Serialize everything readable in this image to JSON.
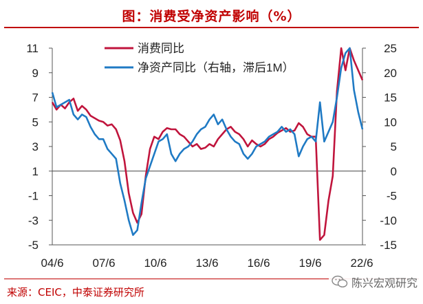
{
  "title": "图：消费受净资产影响（%）",
  "source": "来源：CEIC，中泰证券研究所",
  "watermark": "陈兴宏观研究",
  "colors": {
    "series1": "#c0143c",
    "series2": "#1f7ac4",
    "title": "#c00000",
    "axis": "#555555"
  },
  "chart_data": {
    "type": "line",
    "left_axis": {
      "ylim": [
        -5,
        11
      ],
      "ticks": [
        "11",
        "9",
        "7",
        "5",
        "3",
        "1",
        "-1",
        "-3",
        "-5"
      ]
    },
    "right_axis": {
      "ylim": [
        -15,
        25
      ],
      "ticks": [
        "25",
        "20",
        "15",
        "10",
        "5",
        "0",
        "-5",
        "-10",
        "-15"
      ]
    },
    "x_tick_labels": [
      "04/6",
      "07/6",
      "10/6",
      "13/6",
      "16/6",
      "19/6",
      "22/6"
    ],
    "x_range": [
      "2004-06",
      "2022-09"
    ],
    "zero_line": true,
    "legend_position": "top-center",
    "series": [
      {
        "name": "消费同比",
        "axis": "left",
        "color": "#c0143c",
        "points": [
          [
            "2004-06",
            6.6
          ],
          [
            "2004-09",
            6.0
          ],
          [
            "2004-12",
            6.4
          ],
          [
            "2005-03",
            6.1
          ],
          [
            "2005-06",
            6.6
          ],
          [
            "2005-09",
            6.9
          ],
          [
            "2005-12",
            5.9
          ],
          [
            "2006-03",
            6.3
          ],
          [
            "2006-06",
            6.0
          ],
          [
            "2006-09",
            5.5
          ],
          [
            "2006-12",
            5.3
          ],
          [
            "2007-03",
            5.1
          ],
          [
            "2007-06",
            5.0
          ],
          [
            "2007-09",
            4.7
          ],
          [
            "2007-12",
            4.8
          ],
          [
            "2008-03",
            4.4
          ],
          [
            "2008-06",
            3.5
          ],
          [
            "2008-09",
            1.8
          ],
          [
            "2008-12",
            -0.8
          ],
          [
            "2009-03",
            -2.4
          ],
          [
            "2009-06",
            -3.2
          ],
          [
            "2009-09",
            -2.5
          ],
          [
            "2009-12",
            0.6
          ],
          [
            "2010-03",
            2.8
          ],
          [
            "2010-06",
            3.8
          ],
          [
            "2010-09",
            3.6
          ],
          [
            "2010-12",
            4.2
          ],
          [
            "2011-03",
            4.5
          ],
          [
            "2011-06",
            4.4
          ],
          [
            "2011-09",
            4.4
          ],
          [
            "2011-12",
            4.0
          ],
          [
            "2012-03",
            3.8
          ],
          [
            "2012-06",
            3.4
          ],
          [
            "2012-09",
            3.0
          ],
          [
            "2012-12",
            3.2
          ],
          [
            "2013-03",
            2.8
          ],
          [
            "2013-06",
            2.9
          ],
          [
            "2013-09",
            3.2
          ],
          [
            "2013-12",
            3.0
          ],
          [
            "2014-03",
            3.6
          ],
          [
            "2014-06",
            4.0
          ],
          [
            "2014-09",
            4.4
          ],
          [
            "2014-12",
            4.6
          ],
          [
            "2015-03",
            4.2
          ],
          [
            "2015-06",
            4.0
          ],
          [
            "2015-09",
            3.6
          ],
          [
            "2015-12",
            3.0
          ],
          [
            "2016-03",
            3.5
          ],
          [
            "2016-06",
            3.2
          ],
          [
            "2016-09",
            3.0
          ],
          [
            "2016-12",
            3.2
          ],
          [
            "2017-03",
            3.6
          ],
          [
            "2017-06",
            3.8
          ],
          [
            "2017-09",
            4.1
          ],
          [
            "2017-12",
            4.3
          ],
          [
            "2018-03",
            4.5
          ],
          [
            "2018-06",
            4.2
          ],
          [
            "2018-09",
            4.3
          ],
          [
            "2018-12",
            4.9
          ],
          [
            "2019-03",
            4.6
          ],
          [
            "2019-06",
            4.0
          ],
          [
            "2019-09",
            3.8
          ],
          [
            "2019-12",
            3.8
          ],
          [
            "2020-03",
            -4.6
          ],
          [
            "2020-06",
            -4.2
          ],
          [
            "2020-09",
            -1.4
          ],
          [
            "2020-12",
            0.6
          ],
          [
            "2021-03",
            7.5
          ],
          [
            "2021-06",
            11.0
          ],
          [
            "2021-09",
            9.2
          ],
          [
            "2021-12",
            11.0
          ],
          [
            "2022-03",
            10.0
          ],
          [
            "2022-06",
            9.2
          ],
          [
            "2022-09",
            8.4
          ]
        ]
      },
      {
        "name": "净资产同比（右轴，滞后1M）",
        "axis": "right",
        "color": "#1f7ac4",
        "points": [
          [
            "2004-06",
            16.0
          ],
          [
            "2004-09",
            13.0
          ],
          [
            "2004-12",
            13.5
          ],
          [
            "2005-03",
            14.0
          ],
          [
            "2005-06",
            14.5
          ],
          [
            "2005-09",
            11.5
          ],
          [
            "2005-12",
            10.5
          ],
          [
            "2006-03",
            11.5
          ],
          [
            "2006-06",
            11.0
          ],
          [
            "2006-09",
            9.0
          ],
          [
            "2006-12",
            7.5
          ],
          [
            "2007-03",
            6.5
          ],
          [
            "2007-06",
            6.5
          ],
          [
            "2007-09",
            4.5
          ],
          [
            "2007-12",
            3.5
          ],
          [
            "2008-03",
            2.5
          ],
          [
            "2008-06",
            -2.5
          ],
          [
            "2008-09",
            -6.0
          ],
          [
            "2008-12",
            -10.0
          ],
          [
            "2009-03",
            -13.0
          ],
          [
            "2009-06",
            -12.0
          ],
          [
            "2009-09",
            -6.5
          ],
          [
            "2009-12",
            -1.5
          ],
          [
            "2010-03",
            1.0
          ],
          [
            "2010-06",
            3.5
          ],
          [
            "2010-09",
            6.0
          ],
          [
            "2010-12",
            6.5
          ],
          [
            "2011-03",
            7.5
          ],
          [
            "2011-06",
            3.5
          ],
          [
            "2011-09",
            2.0
          ],
          [
            "2011-12",
            3.5
          ],
          [
            "2012-03",
            4.5
          ],
          [
            "2012-06",
            5.0
          ],
          [
            "2012-09",
            6.0
          ],
          [
            "2012-12",
            7.5
          ],
          [
            "2013-03",
            8.5
          ],
          [
            "2013-06",
            9.0
          ],
          [
            "2013-09",
            10.5
          ],
          [
            "2013-12",
            11.5
          ],
          [
            "2014-03",
            9.5
          ],
          [
            "2014-06",
            10.5
          ],
          [
            "2014-09",
            8.5
          ],
          [
            "2014-12",
            7.0
          ],
          [
            "2015-03",
            6.0
          ],
          [
            "2015-06",
            5.5
          ],
          [
            "2015-09",
            3.5
          ],
          [
            "2015-12",
            2.5
          ],
          [
            "2016-03",
            3.5
          ],
          [
            "2016-06",
            5.0
          ],
          [
            "2016-09",
            5.5
          ],
          [
            "2016-12",
            6.0
          ],
          [
            "2017-03",
            7.0
          ],
          [
            "2017-06",
            7.5
          ],
          [
            "2017-09",
            8.0
          ],
          [
            "2017-12",
            9.0
          ],
          [
            "2018-03",
            8.0
          ],
          [
            "2018-06",
            8.5
          ],
          [
            "2018-09",
            7.5
          ],
          [
            "2018-12",
            3.0
          ],
          [
            "2019-03",
            5.0
          ],
          [
            "2019-06",
            6.5
          ],
          [
            "2019-09",
            7.0
          ],
          [
            "2019-12",
            6.0
          ],
          [
            "2020-03",
            14.0
          ],
          [
            "2020-06",
            6.0
          ],
          [
            "2020-09",
            8.0
          ],
          [
            "2020-12",
            10.0
          ],
          [
            "2021-03",
            15.0
          ],
          [
            "2021-06",
            21.0
          ],
          [
            "2021-09",
            24.0
          ],
          [
            "2021-12",
            25.0
          ],
          [
            "2022-03",
            16.5
          ],
          [
            "2022-06",
            12.0
          ],
          [
            "2022-09",
            8.5
          ]
        ]
      }
    ]
  }
}
